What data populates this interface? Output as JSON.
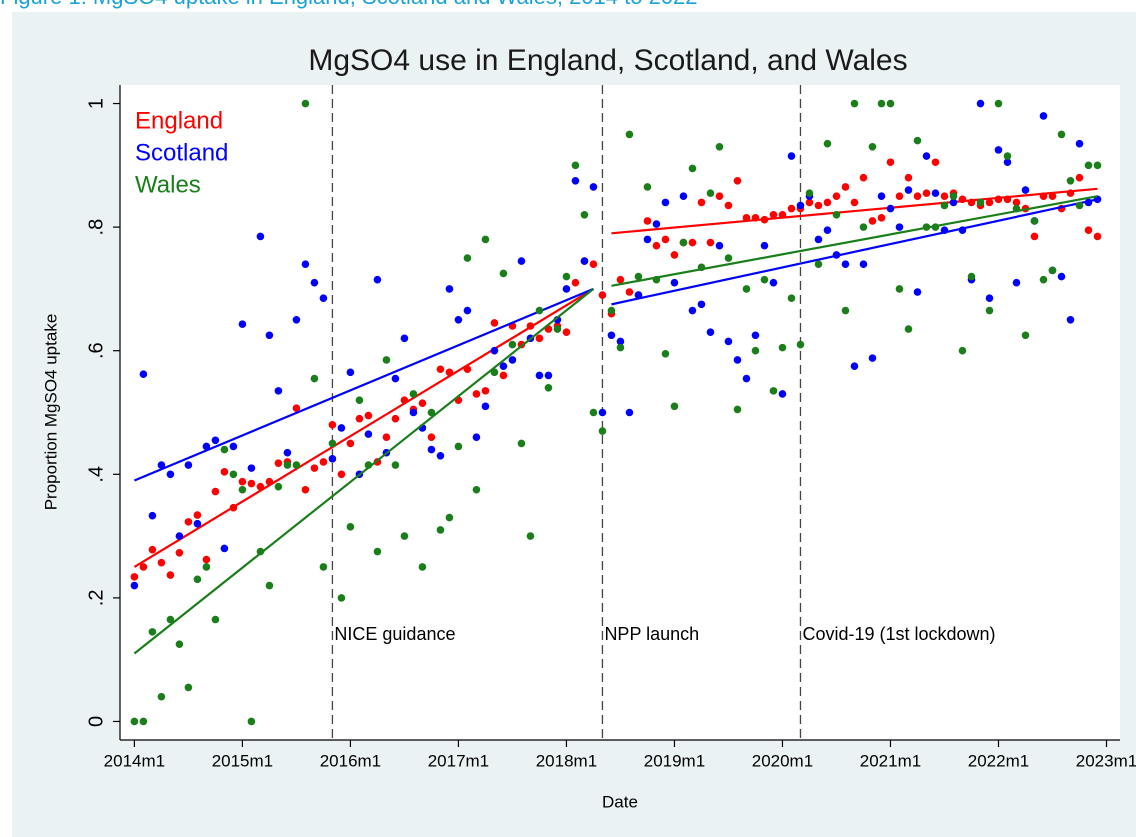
{
  "caption": "Figure 1: MgSO4 uptake in England, Scotland and Wales, 2014 to 2022",
  "chart_data": {
    "type": "scatter",
    "title": "MgSO4 use in England, Scotland, and Wales",
    "x_label": "Date",
    "y_label": "Proportion MgSO4 uptake",
    "x": [
      648,
      649,
      650,
      651,
      652,
      653,
      654,
      655,
      656,
      657,
      658,
      659,
      660,
      661,
      662,
      663,
      664,
      665,
      666,
      667,
      668,
      669,
      670,
      671,
      672,
      673,
      674,
      675,
      676,
      677,
      678,
      679,
      680,
      681,
      682,
      683,
      684,
      685,
      686,
      687,
      688,
      689,
      690,
      691,
      692,
      693,
      694,
      695,
      696,
      697,
      698,
      699,
      700,
      701,
      702,
      703,
      704,
      705,
      706,
      707,
      708,
      709,
      710,
      711,
      712,
      713,
      714,
      715,
      716,
      717,
      718,
      719,
      720,
      721,
      722,
      723,
      724,
      725,
      726,
      727,
      728,
      729,
      730,
      731,
      732,
      733,
      734,
      735,
      736,
      737,
      738,
      739,
      740,
      741,
      742,
      743,
      744,
      745,
      746,
      747,
      748,
      749,
      750,
      751,
      752,
      753,
      754,
      755
    ],
    "series": [
      {
        "name": "England",
        "color": "#ff0000",
        "values": [
          0.234,
          0.25,
          0.278,
          0.257,
          0.237,
          0.273,
          0.323,
          0.334,
          0.262,
          0.372,
          0.404,
          0.346,
          0.388,
          0.385,
          0.38,
          0.388,
          0.418,
          0.42,
          0.507,
          0.375,
          0.41,
          0.42,
          0.48,
          0.4,
          0.45,
          0.49,
          0.495,
          0.42,
          0.46,
          0.49,
          0.52,
          0.505,
          0.515,
          0.46,
          0.57,
          0.565,
          0.52,
          0.57,
          0.53,
          0.535,
          0.645,
          0.56,
          0.64,
          0.61,
          0.64,
          0.62,
          0.635,
          0.64,
          0.63,
          0.71,
          0.745,
          0.74,
          0.69,
          0.66,
          0.715,
          0.695,
          0.69,
          0.81,
          0.77,
          0.78,
          0.755,
          0.775,
          0.775,
          0.84,
          0.775,
          0.85,
          0.835,
          0.875,
          0.815,
          0.815,
          0.812,
          0.82,
          0.82,
          0.83,
          0.83,
          0.84,
          0.835,
          0.84,
          0.85,
          0.865,
          0.84,
          0.88,
          0.81,
          0.815,
          0.905,
          0.85,
          0.88,
          0.85,
          0.855,
          0.905,
          0.85,
          0.855,
          0.845,
          0.84,
          0.835,
          0.84,
          0.845,
          0.845,
          0.84,
          0.83,
          0.785,
          0.85,
          0.85,
          0.83,
          0.855,
          0.88,
          0.795,
          0.785
        ],
        "fit": [
          {
            "x": [
              648,
              699
            ],
            "values": [
              0.25,
              0.7
            ]
          },
          {
            "x": [
              701,
              755
            ],
            "values": [
              0.79,
              0.862
            ]
          }
        ]
      },
      {
        "name": "Scotland",
        "color": "#0000ff",
        "values": [
          0.22,
          0.562,
          0.333,
          0.415,
          0.4,
          0.3,
          0.415,
          0.32,
          0.445,
          0.455,
          0.28,
          0.445,
          0.643,
          0.41,
          0.785,
          0.625,
          0.535,
          0.435,
          0.65,
          0.74,
          0.71,
          0.685,
          0.425,
          0.475,
          0.565,
          0.4,
          0.465,
          0.715,
          0.435,
          0.555,
          0.62,
          0.5,
          0.475,
          0.44,
          0.43,
          0.7,
          0.65,
          0.665,
          0.46,
          0.51,
          0.6,
          0.575,
          0.585,
          0.745,
          0.62,
          0.56,
          0.56,
          0.65,
          0.7,
          0.875,
          0.745,
          0.865,
          0.5,
          0.625,
          0.615,
          0.5,
          0.69,
          0.78,
          0.805,
          0.84,
          0.71,
          0.85,
          0.665,
          0.675,
          0.63,
          0.77,
          0.615,
          0.585,
          0.555,
          0.625,
          0.77,
          0.71,
          0.53,
          0.915,
          0.835,
          0.85,
          0.78,
          0.795,
          0.755,
          0.74,
          0.575,
          0.74,
          0.588,
          0.85,
          0.83,
          0.8,
          0.86,
          0.695,
          0.915,
          0.855,
          0.795,
          0.84,
          0.795,
          0.715,
          1.0,
          0.685,
          0.925,
          0.905,
          0.71,
          0.86,
          0.81,
          0.98,
          0.73,
          0.72,
          0.65,
          0.935,
          0.84,
          0.845
        ],
        "fit": [
          {
            "x": [
              648,
              699
            ],
            "values": [
              0.39,
              0.7
            ]
          },
          {
            "x": [
              701,
              755
            ],
            "values": [
              0.675,
              0.845
            ]
          }
        ]
      },
      {
        "name": "Wales",
        "color": "#1a7f1a",
        "values": [
          0.0,
          0.0,
          0.145,
          0.04,
          0.165,
          0.125,
          0.055,
          0.23,
          0.25,
          0.165,
          0.44,
          0.4,
          0.375,
          0.0,
          0.275,
          0.22,
          0.38,
          0.415,
          0.415,
          1.0,
          0.555,
          0.25,
          0.45,
          0.2,
          0.315,
          0.52,
          0.415,
          0.275,
          0.585,
          0.415,
          0.3,
          0.53,
          0.25,
          0.5,
          0.31,
          0.33,
          0.445,
          0.75,
          0.375,
          0.78,
          0.565,
          0.725,
          0.61,
          0.45,
          0.3,
          0.665,
          0.54,
          0.635,
          0.72,
          0.9,
          0.82,
          0.5,
          0.47,
          0.665,
          0.605,
          0.95,
          0.72,
          0.865,
          0.715,
          0.595,
          0.51,
          0.775,
          0.895,
          0.735,
          0.855,
          0.93,
          0.75,
          0.505,
          0.7,
          0.6,
          0.715,
          0.535,
          0.605,
          0.685,
          0.61,
          0.855,
          0.74,
          0.935,
          0.82,
          0.665,
          1.0,
          0.8,
          0.93,
          1.0,
          1.0,
          0.7,
          0.635,
          0.94,
          0.8,
          0.8,
          0.835,
          0.85,
          0.6,
          0.72,
          0.84,
          0.665,
          1.0,
          0.915,
          0.83,
          0.625,
          0.81,
          0.715,
          0.73,
          0.95,
          0.875,
          0.835,
          0.9,
          0.9
        ],
        "fit": [
          {
            "x": [
              648,
              699
            ],
            "values": [
              0.11,
              0.7
            ]
          },
          {
            "x": [
              701,
              755
            ],
            "values": [
              0.705,
              0.85
            ]
          }
        ]
      }
    ],
    "annotations": [
      {
        "x": 670,
        "label": "NICE guidance"
      },
      {
        "x": 700,
        "label": "NPP launch"
      },
      {
        "x": 722,
        "label": "Covid-19 (1st lockdown)"
      }
    ],
    "xlim": [
      646.4,
      757.5
    ],
    "ylim": [
      -0.03,
      1.03
    ],
    "xticks": [
      {
        "value": 648,
        "label": "2014m1"
      },
      {
        "value": 660,
        "label": "2015m1"
      },
      {
        "value": 672,
        "label": "2016m1"
      },
      {
        "value": 684,
        "label": "2017m1"
      },
      {
        "value": 696,
        "label": "2018m1"
      },
      {
        "value": 708,
        "label": "2019m1"
      },
      {
        "value": 720,
        "label": "2020m1"
      },
      {
        "value": 732,
        "label": "2021m1"
      },
      {
        "value": 744,
        "label": "2022m1"
      },
      {
        "value": 756,
        "label": "2023m1"
      }
    ],
    "yticks": [
      0,
      {
        "value": 0.2,
        "label": ".2"
      },
      {
        "value": 0.4,
        "label": ".4"
      },
      {
        "value": 0.6,
        "label": ".6"
      },
      {
        "value": 0.8,
        "label": ".8"
      },
      1
    ],
    "grid": false,
    "legend": "top-left"
  }
}
